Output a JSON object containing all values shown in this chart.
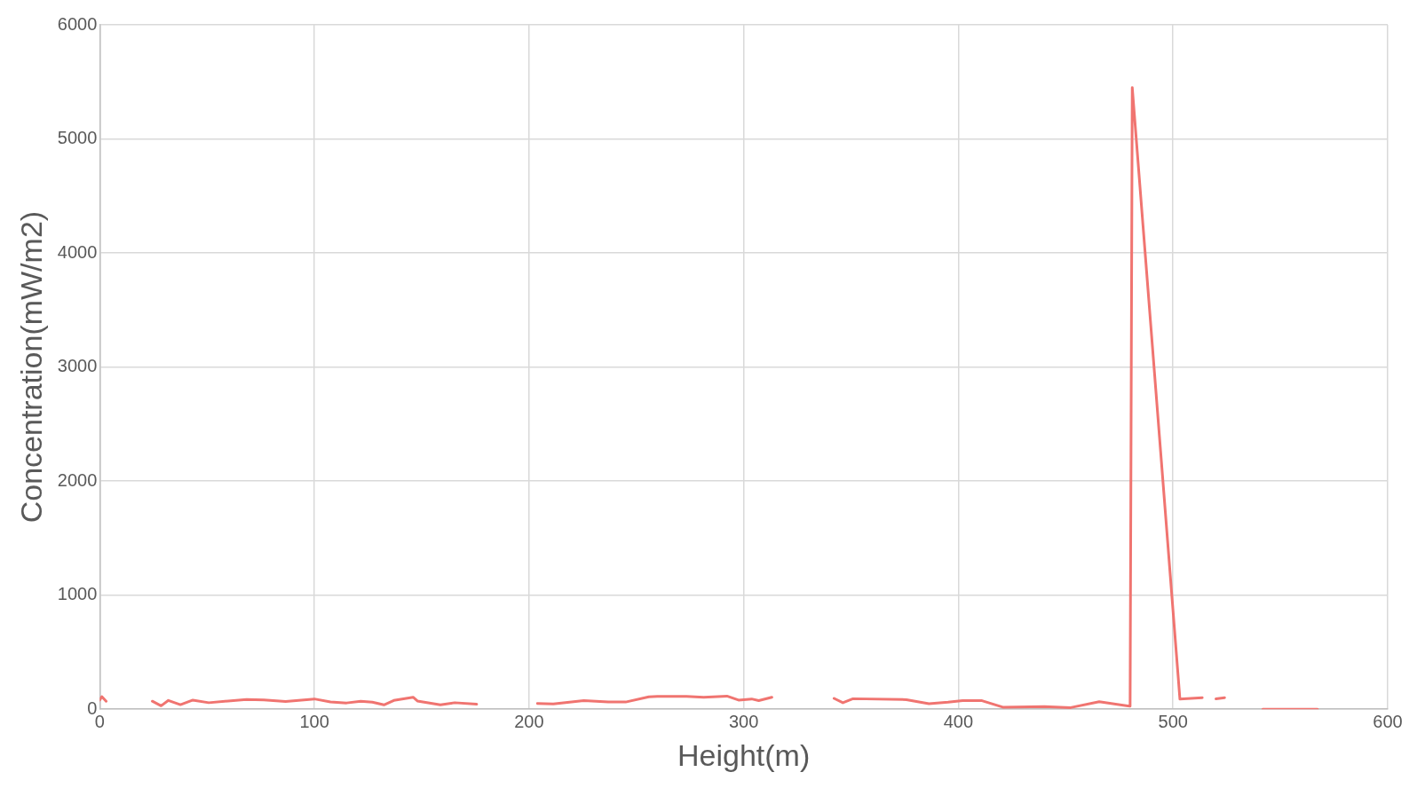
{
  "chart_data": {
    "type": "line",
    "xlabel": "Height(m)",
    "ylabel": "Concentration(mW/m2)",
    "xlim": [
      0,
      600
    ],
    "xticks": [
      0,
      100,
      200,
      300,
      400,
      500,
      600
    ],
    "ylim": [
      0,
      6000
    ],
    "yticks": [
      0,
      1000,
      2000,
      3000,
      4000,
      5000,
      6000
    ],
    "grid": true,
    "legend": false,
    "marker": "none",
    "line_style": "solid",
    "series": [
      {
        "color": "#f07470",
        "x": [
          0,
          1,
          3,
          10,
          24.5,
          28.6,
          32,
          37.6,
          43.4,
          50.8,
          68.4,
          76.5,
          86.6,
          100,
          107.5,
          115,
          121.6,
          127,
          132.4,
          137,
          146,
          148,
          158.7,
          165.4,
          175.6,
          190,
          203.9,
          211.3,
          225.5,
          236.9,
          245,
          255.8,
          259.8,
          273.3,
          281.4,
          292.2,
          297.6,
          303.7,
          307,
          313.1,
          330,
          342.1,
          346.2,
          350.9,
          375.8,
          386.3,
          395.2,
          402,
          411,
          420.7,
          440.1,
          452.3,
          465.6,
          480,
          481,
          503.2,
          513.6,
          517,
          520,
          524,
          532,
          541.8,
          567.3
        ],
        "values": [
          80,
          110,
          70,
          null,
          70,
          30,
          77,
          40,
          80,
          57,
          85,
          82,
          67,
          90,
          64,
          55,
          70,
          62,
          38,
          77,
          105,
          72,
          38,
          57,
          44,
          null,
          50,
          46,
          75,
          63,
          63,
          108,
          113,
          113,
          105,
          115,
          80,
          90,
          75,
          105,
          null,
          95,
          57,
          92,
          84,
          49,
          61,
          75,
          75,
          18,
          23,
          14,
          66,
          26,
          5450,
          89,
          101,
          null,
          91,
          101,
          null,
          0,
          0
        ]
      }
    ]
  }
}
